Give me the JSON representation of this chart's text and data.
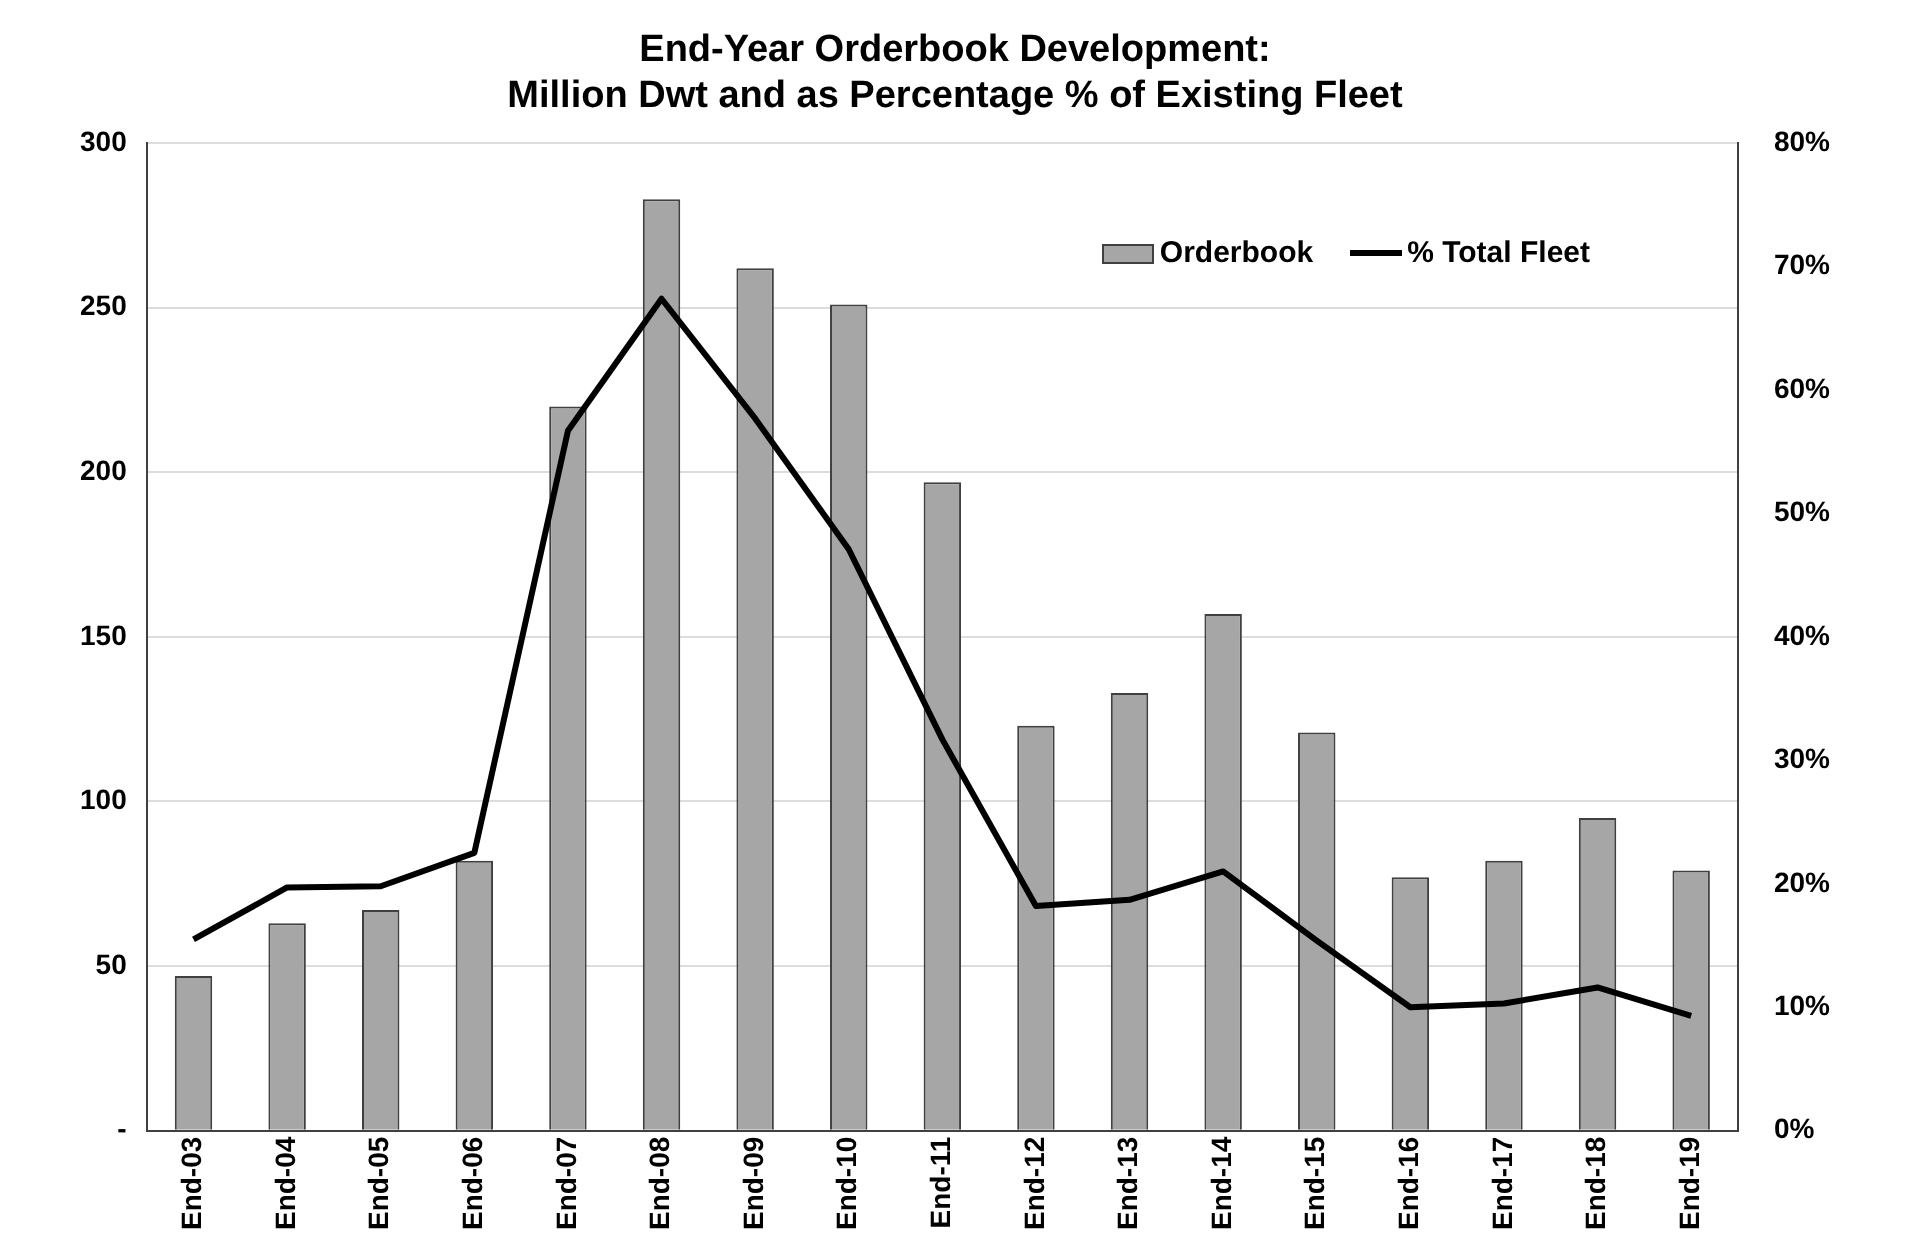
{
  "chart_data": {
    "type": "bar",
    "title": "End-Year Orderbook Development:\nMillion Dwt and as Percentage % of Existing Fleet",
    "categories": [
      "End-03",
      "End-04",
      "End-05",
      "End-06",
      "End-07",
      "End-08",
      "End-09",
      "End-10",
      "End-11",
      "End-12",
      "End-13",
      "End-14",
      "End-15",
      "End-16",
      "End-17",
      "End-18",
      "End-19"
    ],
    "series": [
      {
        "name": "Orderbook",
        "color": "#a6a6a6",
        "values": [
          47,
          63,
          67,
          82,
          220,
          283,
          262,
          251,
          197,
          123,
          133,
          157,
          121,
          77,
          82,
          95,
          79
        ]
      },
      {
        "name": "% Total Fleet",
        "type": "line",
        "axis": "y2",
        "color": "#000000",
        "values": [
          15.5,
          19.7,
          19.8,
          22.5,
          56.7,
          67.4,
          57.7,
          47.1,
          31.7,
          18.2,
          18.7,
          21.0,
          15.4,
          10.0,
          10.3,
          11.6,
          9.3
        ]
      }
    ],
    "ylim": [
      0,
      300
    ],
    "yticks": [
      {
        "value": 0,
        "label": "-"
      },
      50,
      100,
      150,
      200,
      250,
      300
    ],
    "y2lim": [
      0,
      80
    ],
    "y2ticks": [
      {
        "value": 0,
        "label": "0%"
      },
      {
        "value": 10,
        "label": "10%"
      },
      {
        "value": 20,
        "label": "20%"
      },
      {
        "value": 30,
        "label": "30%"
      },
      {
        "value": 40,
        "label": "40%"
      },
      {
        "value": 50,
        "label": "50%"
      },
      {
        "value": 60,
        "label": "60%"
      },
      {
        "value": 70,
        "label": "70%"
      },
      {
        "value": 80,
        "label": "80%"
      }
    ],
    "grid": "y",
    "legend": "top right",
    "marker": "none",
    "line_style": "solid"
  }
}
